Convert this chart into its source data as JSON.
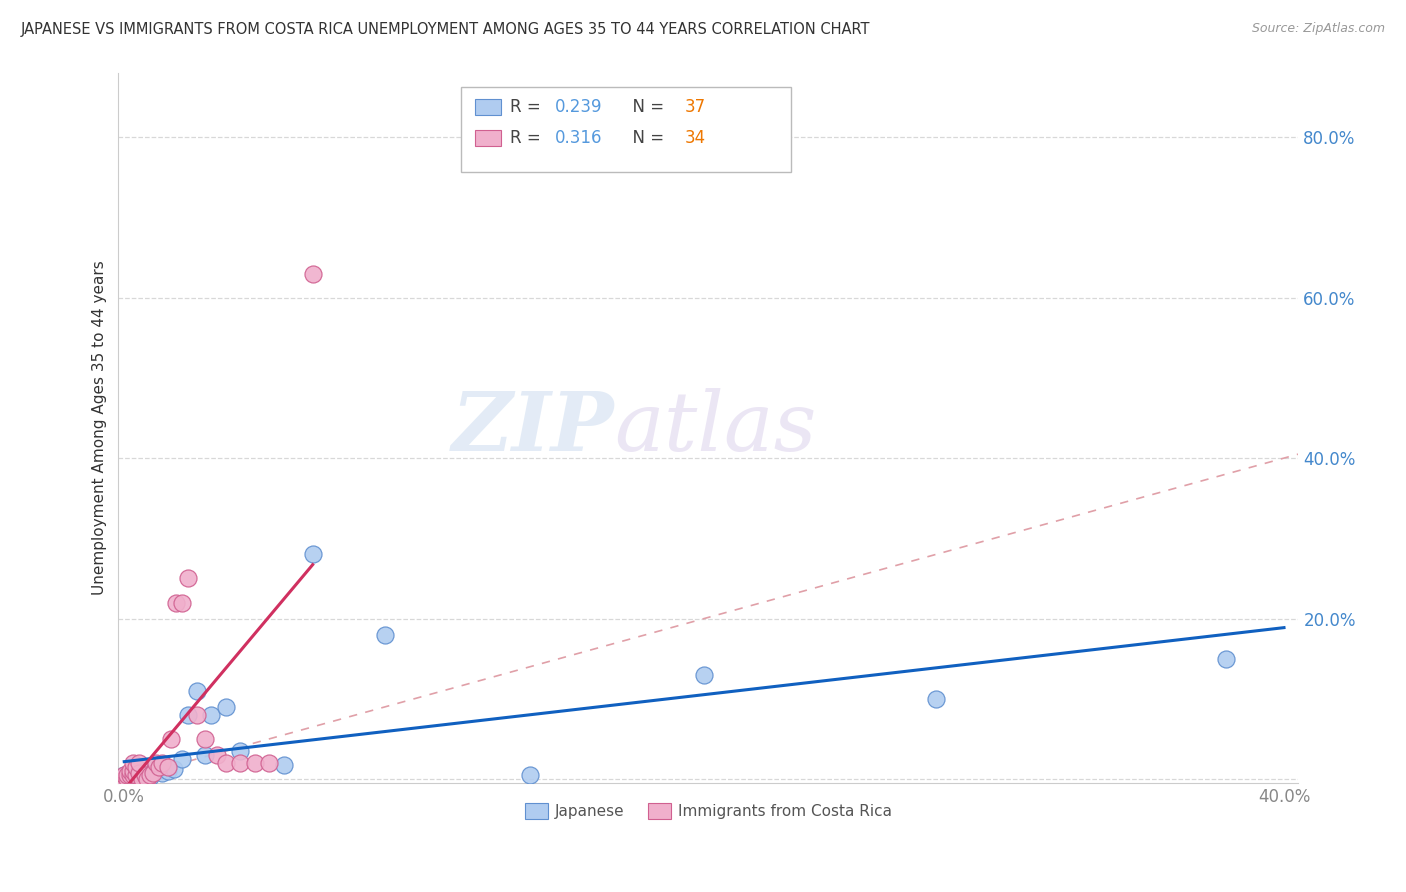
{
  "title": "JAPANESE VS IMMIGRANTS FROM COSTA RICA UNEMPLOYMENT AMONG AGES 35 TO 44 YEARS CORRELATION CHART",
  "source": "Source: ZipAtlas.com",
  "ylabel": "Unemployment Among Ages 35 to 44 years",
  "xlim": [
    -0.002,
    0.405
  ],
  "ylim": [
    -0.005,
    0.88
  ],
  "xticks": [
    0.0,
    0.05,
    0.1,
    0.15,
    0.2,
    0.25,
    0.3,
    0.35,
    0.4
  ],
  "yticks": [
    0.0,
    0.2,
    0.4,
    0.6,
    0.8
  ],
  "legend_r1": "0.239",
  "legend_n1": "37",
  "legend_r2": "0.316",
  "legend_n2": "34",
  "japanese_color": "#b0ccf0",
  "costa_rica_color": "#f0b0cc",
  "japanese_edge": "#6090d0",
  "costa_rica_edge": "#d06090",
  "regression_blue": "#1060c0",
  "regression_pink": "#d03060",
  "diag_color": "#e0a0a8",
  "japanese_x": [
    0.0,
    0.001,
    0.001,
    0.002,
    0.002,
    0.002,
    0.003,
    0.003,
    0.004,
    0.004,
    0.005,
    0.005,
    0.005,
    0.006,
    0.006,
    0.007,
    0.008,
    0.009,
    0.01,
    0.011,
    0.013,
    0.015,
    0.017,
    0.02,
    0.022,
    0.025,
    0.028,
    0.03,
    0.035,
    0.04,
    0.055,
    0.065,
    0.09,
    0.14,
    0.2,
    0.28,
    0.38
  ],
  "japanese_y": [
    0.005,
    0.0,
    0.005,
    0.0,
    0.005,
    0.008,
    0.003,
    0.008,
    0.002,
    0.006,
    0.0,
    0.004,
    0.008,
    0.005,
    0.01,
    0.003,
    0.005,
    0.003,
    0.015,
    0.01,
    0.008,
    0.01,
    0.012,
    0.025,
    0.08,
    0.11,
    0.03,
    0.08,
    0.09,
    0.035,
    0.018,
    0.28,
    0.18,
    0.005,
    0.13,
    0.1,
    0.15
  ],
  "costa_rica_x": [
    0.0,
    0.0,
    0.001,
    0.001,
    0.002,
    0.002,
    0.003,
    0.003,
    0.003,
    0.004,
    0.004,
    0.005,
    0.005,
    0.006,
    0.007,
    0.008,
    0.009,
    0.01,
    0.011,
    0.012,
    0.013,
    0.015,
    0.016,
    0.018,
    0.02,
    0.022,
    0.025,
    0.028,
    0.032,
    0.035,
    0.04,
    0.045,
    0.05,
    0.065
  ],
  "costa_rica_y": [
    0.0,
    0.005,
    0.0,
    0.005,
    0.005,
    0.01,
    0.005,
    0.01,
    0.02,
    0.005,
    0.015,
    0.008,
    0.02,
    0.0,
    0.005,
    0.0,
    0.005,
    0.008,
    0.02,
    0.015,
    0.02,
    0.015,
    0.05,
    0.22,
    0.22,
    0.25,
    0.08,
    0.05,
    0.03,
    0.02,
    0.02,
    0.02,
    0.02,
    0.63
  ],
  "watermark_zip": "ZIP",
  "watermark_atlas": "atlas",
  "background_color": "#ffffff",
  "grid_color": "#d8d8d8",
  "label_color_blue": "#4488cc",
  "text_color": "#333333",
  "tick_label_color": "#888888"
}
